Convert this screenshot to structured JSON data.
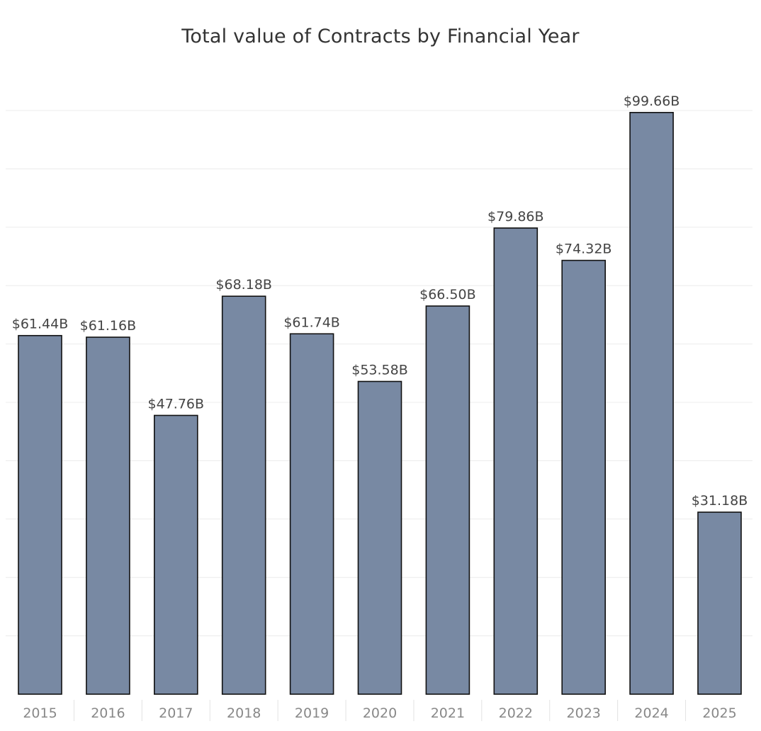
{
  "chart_data": {
    "type": "bar",
    "title": "Total value of Contracts by Financial Year",
    "xlabel": "",
    "ylabel": "",
    "categories": [
      "2015",
      "2016",
      "2017",
      "2018",
      "2019",
      "2020",
      "2021",
      "2022",
      "2023",
      "2024",
      "2025"
    ],
    "values": [
      61.44,
      61.16,
      47.76,
      68.18,
      61.74,
      53.58,
      66.5,
      79.86,
      74.32,
      99.66,
      31.18
    ],
    "value_labels": [
      "$61.44B",
      "$61.16B",
      "$47.76B",
      "$68.18B",
      "$61.74B",
      "$53.58B",
      "$66.50B",
      "$79.86B",
      "$74.32B",
      "$99.66B",
      "$31.18B"
    ],
    "unit": "B",
    "ylim": [
      0,
      100
    ],
    "grid": true,
    "y_axis_visible": false,
    "bar_color": "#7889a3",
    "bar_outline_color": "#111111"
  }
}
